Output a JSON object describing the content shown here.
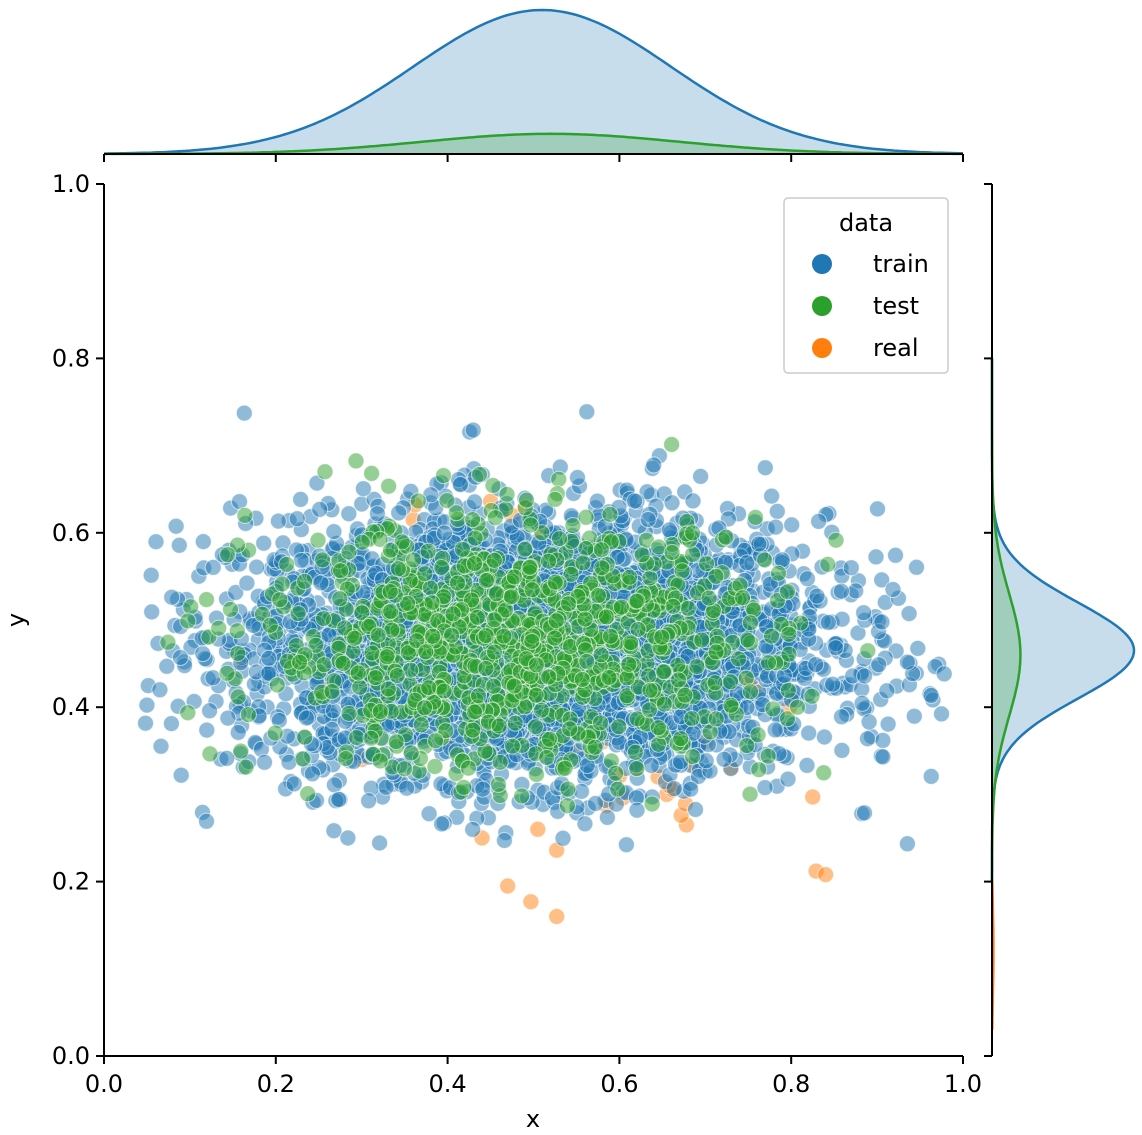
{
  "chart_data": {
    "type": "scatter",
    "kind": "jointplot",
    "xlabel": "x",
    "ylabel": "y",
    "xlim": [
      0.0,
      1.0
    ],
    "ylim": [
      0.0,
      1.0
    ],
    "x_ticks": [
      "0.0",
      "0.2",
      "0.4",
      "0.6",
      "0.8",
      "1.0"
    ],
    "y_ticks": [
      "0.0",
      "0.2",
      "0.4",
      "0.6",
      "0.8",
      "1.0"
    ],
    "grid": false,
    "legend": {
      "title": "data",
      "placement": "top-right",
      "entries": [
        {
          "name": "train",
          "color": "#1f77b4"
        },
        {
          "name": "test",
          "color": "#2ca02c"
        },
        {
          "name": "real",
          "color": "#ff7f0e"
        }
      ]
    },
    "series": [
      {
        "name": "train",
        "color": "#1f77b4",
        "approx_count": 4000,
        "center": [
          0.5,
          0.47
        ],
        "spread": [
          0.17,
          0.075
        ],
        "x_range": [
          0.04,
          0.98
        ],
        "y_range": [
          0.24,
          0.76
        ]
      },
      {
        "name": "test",
        "color": "#2ca02c",
        "approx_count": 1000,
        "center": [
          0.48,
          0.47
        ],
        "spread": [
          0.15,
          0.07
        ],
        "x_range": [
          0.05,
          0.92
        ],
        "y_range": [
          0.28,
          0.76
        ]
      },
      {
        "name": "real",
        "color": "#ff7f0e",
        "points": [
          [
            0.47,
            0.195
          ],
          [
            0.497,
            0.177
          ],
          [
            0.527,
            0.16
          ],
          [
            0.527,
            0.236
          ],
          [
            0.44,
            0.25
          ],
          [
            0.829,
            0.212
          ],
          [
            0.84,
            0.208
          ],
          [
            0.825,
            0.297
          ],
          [
            0.678,
            0.265
          ],
          [
            0.672,
            0.276
          ],
          [
            0.677,
            0.289
          ],
          [
            0.655,
            0.3
          ],
          [
            0.662,
            0.305
          ],
          [
            0.585,
            0.287
          ],
          [
            0.604,
            0.296
          ],
          [
            0.6,
            0.321
          ],
          [
            0.658,
            0.31
          ],
          [
            0.686,
            0.333
          ],
          [
            0.73,
            0.33
          ],
          [
            0.798,
            0.4
          ],
          [
            0.75,
            0.43
          ],
          [
            0.16,
            0.454
          ],
          [
            0.314,
            0.49
          ],
          [
            0.36,
            0.615
          ],
          [
            0.362,
            0.632
          ],
          [
            0.45,
            0.636
          ],
          [
            0.475,
            0.62
          ],
          [
            0.49,
            0.63
          ],
          [
            0.51,
            0.6
          ],
          [
            0.505,
            0.26
          ],
          [
            0.44,
            0.38
          ],
          [
            0.545,
            0.35
          ],
          [
            0.58,
            0.36
          ],
          [
            0.62,
            0.33
          ],
          [
            0.645,
            0.32
          ],
          [
            0.3,
            0.34
          ],
          [
            0.26,
            0.42
          ],
          [
            0.7,
            0.36
          ],
          [
            0.76,
            0.42
          ],
          [
            0.4,
            0.36
          ]
        ]
      }
    ],
    "marginal_x": {
      "type": "kde",
      "series": [
        {
          "name": "train",
          "peak_x": 0.51,
          "relative_height": 1.0
        },
        {
          "name": "test",
          "peak_x": 0.52,
          "relative_height": 0.14
        }
      ]
    },
    "marginal_y": {
      "type": "kde",
      "series": [
        {
          "name": "train",
          "peak_y": 0.465,
          "relative_height": 1.0
        },
        {
          "name": "test",
          "peak_y": 0.46,
          "relative_height": 0.2
        },
        {
          "name": "real",
          "peak_y": 0.12,
          "relative_height": 0.01
        }
      ]
    }
  }
}
